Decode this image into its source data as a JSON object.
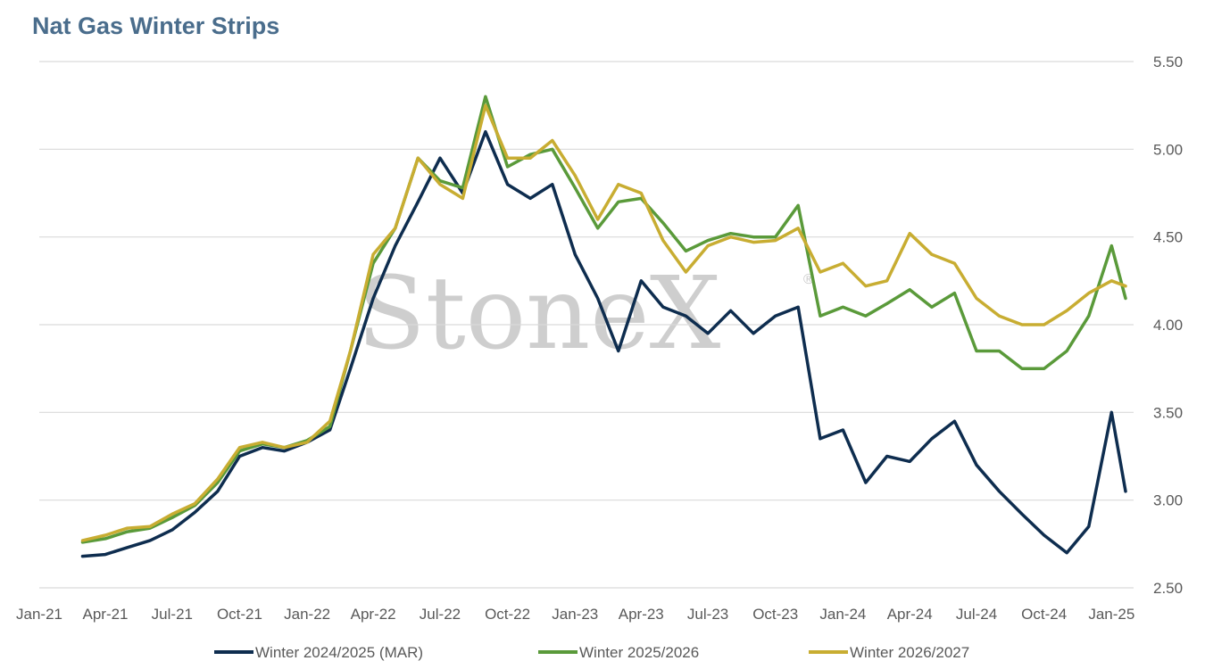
{
  "chart_data": {
    "type": "line",
    "title": "Nat Gas Winter Strips",
    "xlabel": "",
    "ylabel": "",
    "x_ticks": [
      "Jan-21",
      "Apr-21",
      "Jul-21",
      "Oct-21",
      "Jan-22",
      "Apr-22",
      "Jul-22",
      "Oct-22",
      "Jan-23",
      "Apr-23",
      "Jul-23",
      "Oct-23",
      "Jan-24",
      "Apr-24",
      "Jul-24",
      "Oct-24",
      "Jan-25"
    ],
    "y_ticks": [
      "2.50",
      "3.00",
      "3.50",
      "4.00",
      "4.50",
      "5.00",
      "5.50"
    ],
    "ylim": [
      2.5,
      5.5
    ],
    "xlim": [
      "2021-01-01",
      "2025-01-31"
    ],
    "y_axis_position": "right",
    "grid": "horizontal",
    "legend_position": "bottom",
    "x": [
      "2021-03-01",
      "2021-04-01",
      "2021-05-01",
      "2021-06-01",
      "2021-07-01",
      "2021-08-01",
      "2021-09-01",
      "2021-10-01",
      "2021-11-01",
      "2021-12-01",
      "2022-01-01",
      "2022-02-01",
      "2022-03-01",
      "2022-04-01",
      "2022-05-01",
      "2022-06-01",
      "2022-07-01",
      "2022-08-01",
      "2022-09-01",
      "2022-10-01",
      "2022-11-01",
      "2022-12-01",
      "2023-01-01",
      "2023-02-01",
      "2023-03-01",
      "2023-04-01",
      "2023-05-01",
      "2023-06-01",
      "2023-07-01",
      "2023-08-01",
      "2023-09-01",
      "2023-10-01",
      "2023-11-01",
      "2023-12-01",
      "2024-01-01",
      "2024-02-01",
      "2024-03-01",
      "2024-04-01",
      "2024-05-01",
      "2024-06-01",
      "2024-07-01",
      "2024-08-01",
      "2024-09-01",
      "2024-10-01",
      "2024-11-01",
      "2024-12-01",
      "2025-01-01",
      "2025-01-20"
    ],
    "series": [
      {
        "name": "Winter 2024/2025 (MAR)",
        "color": "#0e2d4f",
        "values": [
          2.68,
          2.69,
          2.73,
          2.77,
          2.83,
          2.93,
          3.05,
          3.25,
          3.3,
          3.28,
          3.33,
          3.4,
          3.75,
          4.15,
          4.45,
          4.7,
          4.95,
          4.75,
          5.1,
          4.8,
          4.72,
          4.8,
          4.4,
          4.15,
          3.85,
          4.25,
          4.1,
          4.05,
          3.95,
          4.08,
          3.95,
          4.05,
          4.1,
          3.35,
          3.4,
          3.1,
          3.25,
          3.22,
          3.35,
          3.45,
          3.2,
          3.05,
          2.92,
          2.8,
          2.7,
          2.85,
          3.5,
          3.05
        ]
      },
      {
        "name": "Winter 2025/2026",
        "color": "#5a9a3a",
        "values": [
          2.76,
          2.78,
          2.82,
          2.84,
          2.9,
          2.97,
          3.1,
          3.28,
          3.32,
          3.3,
          3.34,
          3.42,
          3.85,
          4.35,
          4.55,
          4.95,
          4.82,
          4.78,
          5.3,
          4.9,
          4.97,
          5.0,
          4.78,
          4.55,
          4.7,
          4.72,
          4.58,
          4.42,
          4.48,
          4.52,
          4.5,
          4.5,
          4.68,
          4.05,
          4.1,
          4.05,
          4.12,
          4.2,
          4.1,
          4.18,
          3.85,
          3.85,
          3.75,
          3.75,
          3.85,
          4.05,
          4.45,
          4.15
        ]
      },
      {
        "name": "Winter 2026/2027",
        "color": "#c8ad32",
        "values": [
          2.77,
          2.8,
          2.84,
          2.85,
          2.92,
          2.98,
          3.12,
          3.3,
          3.33,
          3.3,
          3.33,
          3.45,
          3.85,
          4.4,
          4.55,
          4.95,
          4.8,
          4.72,
          5.25,
          4.95,
          4.95,
          5.05,
          4.85,
          4.6,
          4.8,
          4.75,
          4.48,
          4.3,
          4.45,
          4.5,
          4.47,
          4.48,
          4.55,
          4.3,
          4.35,
          4.22,
          4.25,
          4.52,
          4.4,
          4.35,
          4.15,
          4.05,
          4.0,
          4.0,
          4.08,
          4.18,
          4.25,
          4.22
        ]
      }
    ]
  },
  "watermark": {
    "text": "StoneX",
    "mark": "®"
  }
}
